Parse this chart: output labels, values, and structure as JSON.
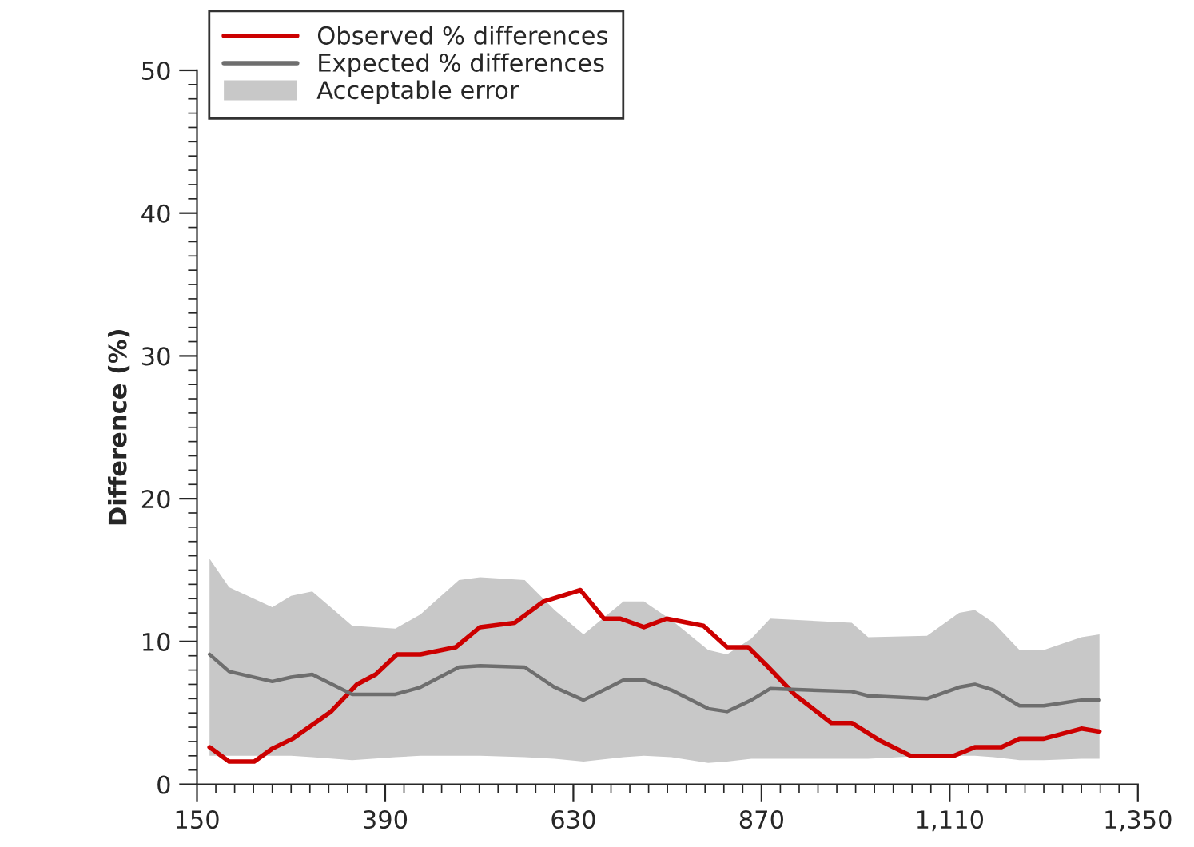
{
  "chart_data": {
    "type": "line",
    "ylabel": "Difference (%)",
    "xlim": [
      150,
      1350
    ],
    "xticks": [
      150,
      390,
      630,
      870,
      {
        "value": 1110,
        "label": "1,110"
      },
      {
        "value": 1350,
        "label": "1,350"
      }
    ],
    "ylim": [
      0,
      50
    ],
    "yticks": [
      0,
      10,
      20,
      30,
      40,
      50
    ],
    "legend": "top left",
    "grid": false,
    "line_style": "solid",
    "marker": "none",
    "annotations": [
      "Acceptable error"
    ],
    "series": [
      {
        "name": "Observed % differences",
        "color": "#cc0000",
        "x": [
          166,
          191,
          223,
          246,
          272,
          321,
          354,
          378,
          405,
          435,
          480,
          511,
          555,
          592,
          639,
          669,
          690,
          720,
          749,
          796,
          826,
          853,
          877,
          912,
          959,
          985,
          1020,
          1060,
          1115,
          1142,
          1176,
          1199,
          1230,
          1278,
          1301
        ],
        "values": [
          2.6,
          1.6,
          1.6,
          2.5,
          3.2,
          5.1,
          7.0,
          7.7,
          9.1,
          9.1,
          9.6,
          11.0,
          11.3,
          12.8,
          13.6,
          11.6,
          11.6,
          11.0,
          11.6,
          11.1,
          9.6,
          9.6,
          8.3,
          6.3,
          4.3,
          4.3,
          3.1,
          2.0,
          2.0,
          2.6,
          2.6,
          3.2,
          3.2,
          3.9,
          3.7
        ]
      },
      {
        "name": "Expected % differences",
        "color": "#6e6e6e",
        "x": [
          166,
          191,
          246,
          270,
          297,
          348,
          403,
          435,
          484,
          511,
          568,
          606,
          643,
          694,
          720,
          755,
          802,
          826,
          857,
          881,
          985,
          1006,
          1081,
          1122,
          1142,
          1166,
          1199,
          1230,
          1278,
          1301
        ],
        "values": [
          9.1,
          7.9,
          7.2,
          7.5,
          7.7,
          6.3,
          6.3,
          6.8,
          8.2,
          8.3,
          8.2,
          6.8,
          5.9,
          7.3,
          7.3,
          6.6,
          5.3,
          5.1,
          5.9,
          6.7,
          6.5,
          6.2,
          6.0,
          6.8,
          7.0,
          6.6,
          5.5,
          5.5,
          5.9,
          5.9
        ],
        "lower": [
          2.0,
          2.0,
          2.0,
          2.0,
          1.9,
          1.7,
          1.9,
          2.0,
          2.0,
          2.0,
          1.9,
          1.8,
          1.6,
          1.9,
          2.0,
          1.9,
          1.5,
          1.6,
          1.8,
          1.8,
          1.8,
          1.8,
          2.0,
          2.0,
          2.0,
          1.9,
          1.7,
          1.7,
          1.8,
          1.8
        ],
        "upper": [
          15.8,
          13.8,
          12.4,
          13.2,
          13.5,
          11.1,
          10.9,
          11.9,
          14.3,
          14.5,
          14.3,
          12.2,
          10.5,
          12.8,
          12.8,
          11.5,
          9.4,
          9.1,
          10.2,
          11.6,
          11.3,
          10.3,
          10.4,
          12.0,
          12.2,
          11.3,
          9.4,
          9.4,
          10.3,
          10.5
        ]
      }
    ]
  }
}
